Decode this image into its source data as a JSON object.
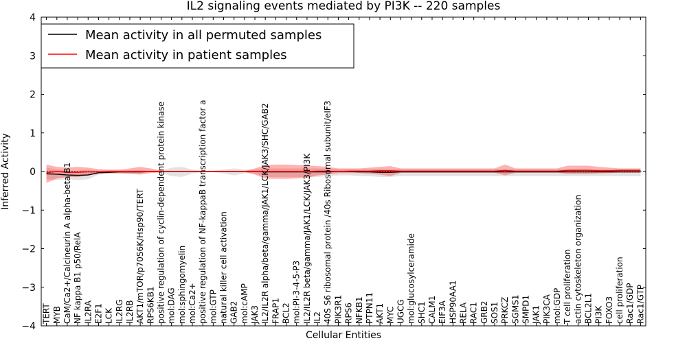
{
  "chart_data": {
    "type": "line",
    "title": "IL2 signaling events mediated by PI3K -- 220 samples",
    "xlabel": "Cellular Entities",
    "ylabel": "Inferred Activity",
    "ylim": [
      -4,
      4
    ],
    "yticks": [
      -4,
      -3,
      -2,
      -1,
      0,
      1,
      2,
      3,
      4
    ],
    "ytick_labels": [
      "−4",
      "−3",
      "−2",
      "−1",
      "0",
      "1",
      "2",
      "3",
      "4"
    ],
    "grid": false,
    "legend_position": "top-left",
    "categories": [
      "TERT",
      "MYB",
      "CaM/Ca2+/Calcineurin A alpha-beta B1",
      "NF kappa B1 p50/RelA",
      "IL2RA",
      "E2F1",
      "LCK",
      "IL2RG",
      "IL2RB",
      "AKT1/mTOR/p70S6K/Hsp90/TERT",
      "RPS6KB1",
      "positive regulation of cyclin-dependent protein kinase",
      "mol:DAG",
      "mol:sphingomyelin",
      "mol:Ca2+",
      "positive regulation of NF-kappaB transcription factor a",
      "mol:GTP",
      "natural killer cell activation",
      "GAB2",
      "mol:cAMP",
      "JAK3",
      "IL2/IL2R alpha/beta/gamma/JAK1/LCK/JAK3/SHC/GAB2",
      "FRAP1",
      "BCL2",
      "mol:PI-3-4-5-P3",
      "IL2/IL2R beta/gamma/JAK1/LCK/JAK3/PI3K",
      "IL2",
      "40S S6 ribosomal protein /40s Ribosomal subunit/eIF3",
      "PIK3R1",
      "RPS6",
      "NFKB1",
      "PTPN11",
      "AKT1",
      "MYC",
      "UGCG",
      "mol:glucosylceramide",
      "SHC1",
      "CALM1",
      "EIF3A",
      "HSP90AA1",
      "RELA",
      "RAC1",
      "GRB2",
      "SOS1",
      "PRKCZ",
      "SGMS1",
      "SMPD1",
      "JAK1",
      "PIK3CA",
      "mol:GDP",
      "T cell proliferation",
      "actin cytoskeleton organization",
      "BCL2L1",
      "PI3K",
      "FOXO3",
      "cell proliferation",
      "Rac1/GDP",
      "Rac1/GTP"
    ],
    "series": [
      {
        "name": "Mean activity in all permuted samples",
        "color": "#000000",
        "values": [
          -0.06,
          -0.07,
          -0.09,
          -0.1,
          -0.09,
          -0.03,
          -0.02,
          -0.01,
          -0.01,
          -0.01,
          0,
          0,
          0,
          0,
          0,
          0,
          0,
          0,
          0,
          0,
          0,
          -0.01,
          -0.01,
          -0.01,
          -0.01,
          -0.01,
          -0.01,
          -0.01,
          0,
          0,
          -0.01,
          -0.01,
          -0.02,
          -0.02,
          -0.01,
          -0.01,
          -0.01,
          -0.01,
          -0.01,
          -0.01,
          -0.01,
          -0.01,
          -0.01,
          -0.01,
          -0.01,
          -0.01,
          -0.01,
          -0.01,
          -0.01,
          -0.01,
          -0.01,
          -0.01,
          -0.01,
          -0.01,
          -0.01,
          -0.01,
          -0.01,
          -0.01
        ],
        "band_upper": [
          0.1,
          0.05,
          0.02,
          0.02,
          0.05,
          0.02,
          0.03,
          0.03,
          0.03,
          0.03,
          0.01,
          0.02,
          0.1,
          0.12,
          0.05,
          0.02,
          0.02,
          0.05,
          0.08,
          0.05,
          0.05,
          0.08,
          0.08,
          0.08,
          0.08,
          0.08,
          0.08,
          0.07,
          0.06,
          0.06,
          0.06,
          0.06,
          0.07,
          0.06,
          0.06,
          0.06,
          0.06,
          0.06,
          0.06,
          0.06,
          0.06,
          0.06,
          0.06,
          0.06,
          0.06,
          0.06,
          0.06,
          0.06,
          0.06,
          0.06,
          0.06,
          0.06,
          0.06,
          0.06,
          0.06,
          0.06,
          0.06,
          0.06
        ],
        "band_lower": [
          -0.2,
          -0.22,
          -0.2,
          -0.22,
          -0.2,
          -0.08,
          -0.05,
          -0.05,
          -0.05,
          -0.05,
          -0.02,
          -0.03,
          -0.12,
          -0.14,
          -0.05,
          -0.02,
          -0.02,
          -0.05,
          -0.1,
          -0.05,
          -0.05,
          -0.14,
          -0.14,
          -0.14,
          -0.14,
          -0.14,
          -0.14,
          -0.12,
          -0.1,
          -0.1,
          -0.12,
          -0.12,
          -0.14,
          -0.14,
          -0.12,
          -0.12,
          -0.12,
          -0.12,
          -0.12,
          -0.12,
          -0.12,
          -0.12,
          -0.12,
          -0.12,
          -0.12,
          -0.12,
          -0.12,
          -0.12,
          -0.12,
          -0.12,
          -0.12,
          -0.12,
          -0.12,
          -0.12,
          -0.12,
          -0.12,
          -0.12,
          -0.12
        ]
      },
      {
        "name": "Mean activity in patient samples",
        "color": "#ff0000",
        "values": [
          -0.03,
          0,
          -0.02,
          -0.02,
          -0.01,
          -0.01,
          0,
          0,
          0,
          0,
          0,
          0,
          0,
          0,
          0,
          0,
          0,
          0,
          0,
          0,
          0,
          0,
          0,
          0,
          0,
          0,
          0.01,
          0.01,
          0,
          0.01,
          0.01,
          0.01,
          0.02,
          0.02,
          0.01,
          0.01,
          0.01,
          0.01,
          0.01,
          0.01,
          0.01,
          0.01,
          0.01,
          0.01,
          0.03,
          0.01,
          0.01,
          0.01,
          0.01,
          0.01,
          0.03,
          0.03,
          0.03,
          0.02,
          0.02,
          0.03,
          0.03,
          0.03
        ],
        "band_upper": [
          0.18,
          0.12,
          0.1,
          0.12,
          0.1,
          0.06,
          0.05,
          0.05,
          0.08,
          0.12,
          0.08,
          0.02,
          0.01,
          0.01,
          0.01,
          0.02,
          0.01,
          0.01,
          0.01,
          0.01,
          0.08,
          0.16,
          0.18,
          0.18,
          0.17,
          0.16,
          0.14,
          0.12,
          0.08,
          0.08,
          0.08,
          0.1,
          0.12,
          0.14,
          0.08,
          0.08,
          0.08,
          0.08,
          0.08,
          0.08,
          0.08,
          0.08,
          0.08,
          0.08,
          0.18,
          0.08,
          0.08,
          0.08,
          0.08,
          0.08,
          0.15,
          0.15,
          0.15,
          0.12,
          0.1,
          0.08,
          0.08,
          0.08
        ],
        "band_lower": [
          -0.3,
          -0.18,
          -0.14,
          -0.14,
          -0.1,
          -0.06,
          -0.05,
          -0.05,
          -0.06,
          -0.08,
          -0.04,
          -0.02,
          -0.01,
          -0.01,
          -0.01,
          -0.02,
          -0.01,
          -0.01,
          -0.01,
          -0.01,
          -0.08,
          -0.18,
          -0.19,
          -0.19,
          -0.18,
          -0.17,
          -0.1,
          -0.08,
          -0.04,
          -0.04,
          -0.04,
          -0.06,
          -0.08,
          -0.12,
          -0.03,
          -0.03,
          -0.03,
          -0.03,
          -0.03,
          -0.03,
          -0.03,
          -0.03,
          -0.03,
          -0.03,
          -0.1,
          -0.03,
          -0.03,
          -0.03,
          -0.03,
          -0.03,
          -0.06,
          -0.06,
          -0.06,
          -0.05,
          -0.04,
          -0.03,
          -0.03,
          -0.03
        ]
      }
    ]
  }
}
